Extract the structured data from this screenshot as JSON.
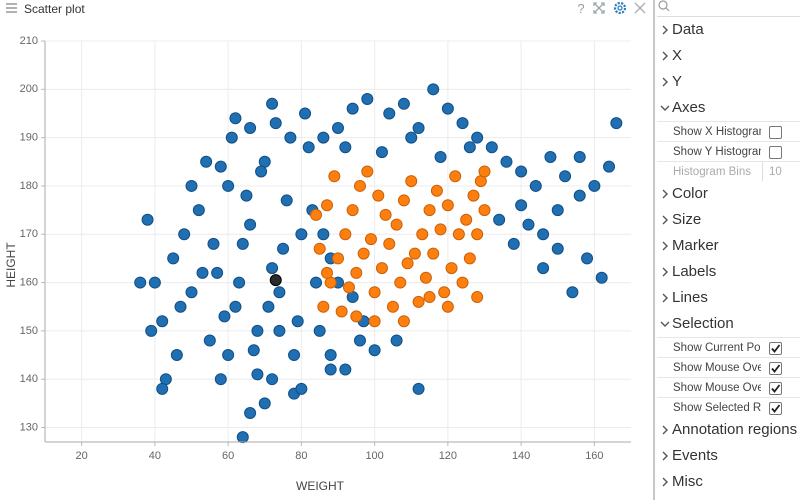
{
  "header": {
    "title": "Scatter plot",
    "help": "?"
  },
  "chart_data": {
    "type": "scatter",
    "x_label": "WEIGHT",
    "y_label": "HEIGHT",
    "xlim": [
      10,
      170
    ],
    "ylim": [
      127,
      210
    ],
    "xticks": [
      20,
      40,
      60,
      80,
      100,
      120,
      140,
      160
    ],
    "yticks": [
      130,
      140,
      150,
      160,
      170,
      180,
      190,
      200,
      210
    ],
    "grid": true,
    "series": [
      {
        "color": "#1f6fb2",
        "stroke": "#124f84",
        "x": [
          40,
          42,
          45,
          48,
          50,
          52,
          55,
          57,
          60,
          62,
          64,
          66,
          68,
          70,
          72,
          74,
          76,
          78,
          80,
          82,
          84,
          46,
          50,
          54,
          58,
          61,
          65,
          69,
          73,
          77,
          81,
          85,
          88,
          92,
          96,
          100,
          38,
          39,
          43,
          47,
          53,
          56,
          59,
          63,
          67,
          71,
          75,
          79,
          83,
          86,
          90,
          94,
          98,
          104,
          108,
          112,
          116,
          120,
          124,
          128,
          132,
          136,
          140,
          144,
          148,
          152,
          156,
          160,
          164,
          166,
          156,
          150,
          146,
          142,
          138,
          134,
          146,
          150,
          154,
          158,
          162,
          140,
          126,
          118,
          110,
          102,
          64,
          66,
          70,
          72,
          78,
          80,
          88,
          112,
          106,
          42,
          36,
          60,
          68,
          74,
          62,
          66,
          58,
          72,
          92,
          97,
          94,
          90,
          88,
          86
        ],
        "values": [
          160,
          152,
          165,
          170,
          158,
          175,
          148,
          162,
          180,
          155,
          168,
          172,
          150,
          185,
          163,
          158,
          177,
          145,
          170,
          188,
          160,
          145,
          180,
          185,
          140,
          190,
          178,
          183,
          193,
          190,
          195,
          150,
          145,
          142,
          148,
          146,
          173,
          150,
          140,
          155,
          162,
          168,
          153,
          160,
          146,
          155,
          167,
          152,
          175,
          190,
          192,
          196,
          198,
          195,
          197,
          192,
          200,
          196,
          193,
          190,
          188,
          185,
          183,
          180,
          186,
          182,
          178,
          180,
          184,
          193,
          186,
          175,
          170,
          172,
          168,
          173,
          163,
          167,
          158,
          165,
          161,
          176,
          188,
          186,
          190,
          187,
          128,
          133,
          135,
          140,
          137,
          138,
          142,
          138,
          148,
          138,
          160,
          145,
          141,
          150,
          194,
          192,
          184,
          197,
          188,
          152,
          157,
          160,
          165,
          170
        ]
      },
      {
        "color": "#ff7f0e",
        "stroke": "#c9610a",
        "x": [
          86,
          88,
          90,
          92,
          94,
          96,
          98,
          100,
          102,
          104,
          106,
          108,
          110,
          112,
          114,
          116,
          118,
          120,
          122,
          124,
          126,
          128,
          130,
          129,
          87,
          89,
          91,
          95,
          99,
          103,
          107,
          111,
          115,
          119,
          123,
          127,
          85,
          93,
          97,
          101,
          105,
          109,
          113,
          117,
          121,
          125,
          95,
          100,
          108,
          115,
          120,
          128,
          87,
          130,
          84
        ],
        "values": [
          155,
          160,
          165,
          170,
          175,
          180,
          183,
          158,
          163,
          168,
          172,
          177,
          181,
          156,
          161,
          166,
          171,
          176,
          182,
          160,
          165,
          170,
          175,
          181,
          176,
          182,
          154,
          162,
          169,
          174,
          160,
          166,
          175,
          158,
          170,
          178,
          167,
          159,
          166,
          178,
          155,
          164,
          170,
          179,
          163,
          173,
          153,
          152,
          152,
          157,
          155,
          157,
          162,
          183,
          174
        ]
      }
    ],
    "current_point": {
      "x": 73,
      "y": 160.5,
      "color": "#2b2b2b"
    }
  },
  "panel": {
    "sections": [
      {
        "label": "Data"
      },
      {
        "label": "X"
      },
      {
        "label": "Y"
      },
      {
        "label": "Axes",
        "expanded": true,
        "items": [
          {
            "label": "Show X Histogran",
            "checked": false
          },
          {
            "label": "Show Y Histogran",
            "checked": false
          },
          {
            "label": "Histogram Bins",
            "value": "10",
            "disabled": true
          }
        ]
      },
      {
        "label": "Color"
      },
      {
        "label": "Size"
      },
      {
        "label": "Marker"
      },
      {
        "label": "Labels"
      },
      {
        "label": "Lines"
      },
      {
        "label": "Selection",
        "expanded": true,
        "items": [
          {
            "label": "Show Current Poi",
            "checked": true
          },
          {
            "label": "Show Mouse Ove",
            "checked": true
          },
          {
            "label": "Show Mouse Ove",
            "checked": true
          },
          {
            "label": "Show Selected Ro",
            "checked": true
          }
        ]
      },
      {
        "label": "Annotation regions"
      },
      {
        "label": "Events"
      },
      {
        "label": "Misc"
      }
    ]
  }
}
